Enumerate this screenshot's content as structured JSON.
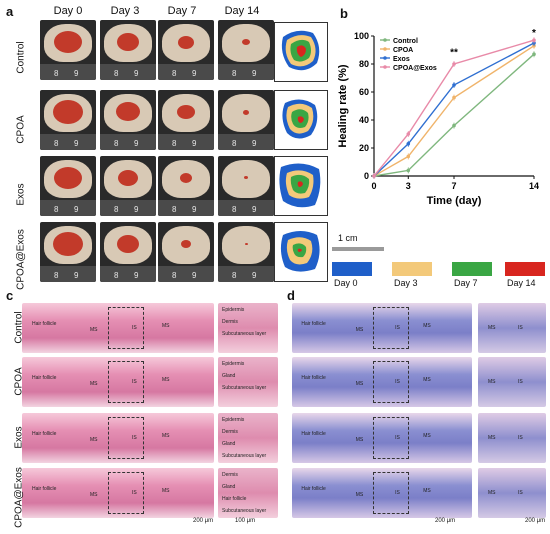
{
  "panels": {
    "a": "a",
    "b": "b",
    "c": "c",
    "d": "d"
  },
  "days": [
    "Day 0",
    "Day 3",
    "Day 7",
    "Day 14"
  ],
  "groups": [
    "Control",
    "CPOA",
    "Exos",
    "CPOA@Exos"
  ],
  "ruler_numbers": [
    "8",
    "9"
  ],
  "scale_1cm": "1 cm",
  "trace_legend": [
    {
      "label": "Day 0",
      "color": "#1f5fc9"
    },
    {
      "label": "Day 3",
      "color": "#f3c97a"
    },
    {
      "label": "Day 7",
      "color": "#3aa644"
    },
    {
      "label": "Day 14",
      "color": "#d8261f"
    }
  ],
  "hist_labels": {
    "hair_follicle": "Hair follicle",
    "ms": "MS",
    "is": "IS",
    "epidermis": "Epidermis",
    "dermis": "Dermis",
    "subcutaneous": "Subcutaneous layer",
    "gland": "Gland"
  },
  "scale_200": "200 μm",
  "scale_100": "100 μm",
  "chart_data": {
    "type": "line",
    "xlabel": "Time (day)",
    "ylabel": "Healing rate (%)",
    "xlim": [
      0,
      14
    ],
    "ylim": [
      0,
      100
    ],
    "xticks": [
      0,
      3,
      7,
      14
    ],
    "yticks": [
      0,
      20,
      40,
      60,
      80,
      100
    ],
    "legend_position": "top-left",
    "series": [
      {
        "name": "Control",
        "color": "#7fb77e",
        "x": [
          0,
          3,
          7,
          14
        ],
        "y": [
          0,
          4,
          36,
          87
        ]
      },
      {
        "name": "CPOA",
        "color": "#f0b46b",
        "x": [
          0,
          3,
          7,
          14
        ],
        "y": [
          0,
          14,
          56,
          93
        ]
      },
      {
        "name": "Exos",
        "color": "#2f6fd1",
        "x": [
          0,
          3,
          7,
          14
        ],
        "y": [
          0,
          23,
          65,
          95
        ]
      },
      {
        "name": "CPOA@Exos",
        "color": "#e88aa8",
        "x": [
          0,
          3,
          7,
          14
        ],
        "y": [
          0,
          30,
          80,
          97
        ]
      }
    ],
    "annotations": [
      {
        "text": "**",
        "x": 7,
        "y": 86
      },
      {
        "text": "*",
        "x": 14,
        "y": 100
      }
    ]
  }
}
